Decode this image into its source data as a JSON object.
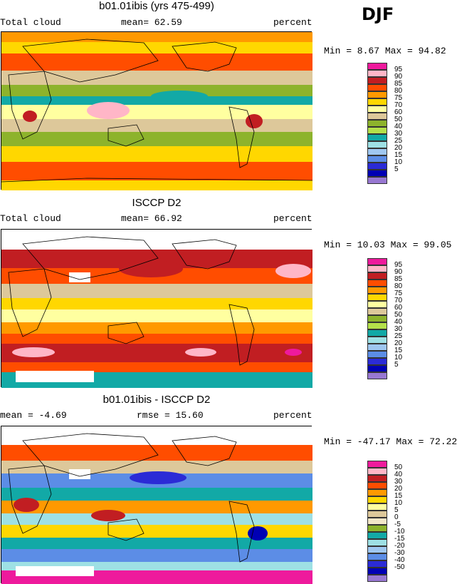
{
  "season": "DJF",
  "colors": {
    "palette": [
      "#ee1a9c",
      "#ffb6c7",
      "#c11e22",
      "#ff4d00",
      "#ff9900",
      "#ffd700",
      "#ffffa0",
      "#ddc89a",
      "#8db32c",
      "#b4e04a",
      "#12a9a6",
      "#9ee0e4",
      "#9fc7f0",
      "#5c8de6",
      "#2b2bd6",
      "#0000b4",
      "#9878d2"
    ],
    "land_outline": "#000000"
  },
  "panels": [
    {
      "id": "model",
      "title": "b01.01ibis (yrs 475-499)",
      "left_label": "Total cloud",
      "center_label": "mean=  62.59",
      "right_label": "percent",
      "minmax": "Min =   8.67 Max =  94.82",
      "legend_labels": [
        "95",
        "90",
        "85",
        "80",
        "75",
        "70",
        "60",
        "50",
        "40",
        "30",
        "25",
        "20",
        "15",
        "10",
        "5"
      ],
      "legend_colors": [
        "#ee1a9c",
        "#ffb6c7",
        "#c11e22",
        "#ff4d00",
        "#ff9900",
        "#ffd700",
        "#ffffa0",
        "#ddc89a",
        "#8db32c",
        "#b4e04a",
        "#12a9a6",
        "#9ee0e4",
        "#9fc7f0",
        "#5c8de6",
        "#2b2bd6",
        "#0000b4",
        "#9878d2"
      ]
    },
    {
      "id": "obs",
      "title": "ISCCP D2",
      "left_label": "Total cloud",
      "center_label": "mean=  66.92",
      "right_label": "percent",
      "minmax": "Min =  10.03 Max =  99.05",
      "legend_labels": [
        "95",
        "90",
        "85",
        "80",
        "75",
        "70",
        "60",
        "50",
        "40",
        "30",
        "25",
        "20",
        "15",
        "10",
        "5"
      ],
      "legend_colors": [
        "#ee1a9c",
        "#ffb6c7",
        "#c11e22",
        "#ff4d00",
        "#ff9900",
        "#ffd700",
        "#ffffa0",
        "#ddc89a",
        "#8db32c",
        "#b4e04a",
        "#12a9a6",
        "#9ee0e4",
        "#9fc7f0",
        "#5c8de6",
        "#2b2bd6",
        "#0000b4",
        "#9878d2"
      ]
    },
    {
      "id": "diff",
      "title": "b01.01ibis - ISCCP D2",
      "left_label": "mean =  -4.69",
      "center_label": "rmse =  15.60",
      "right_label": "percent",
      "minmax": "Min = -47.17 Max =  72.22",
      "legend_labels": [
        "50",
        "40",
        "30",
        "20",
        "15",
        "10",
        "5",
        "0",
        "-5",
        "-10",
        "-15",
        "-20",
        "-30",
        "-40",
        "-50"
      ],
      "legend_colors": [
        "#ee1a9c",
        "#ffb6c7",
        "#c11e22",
        "#ff4d00",
        "#ff9900",
        "#ffd700",
        "#ffffa0",
        "#ddc89a",
        "#f2e6c8",
        "#8db32c",
        "#12a9a6",
        "#9ee0e4",
        "#9fc7f0",
        "#5c8de6",
        "#2b2bd6",
        "#0000b4",
        "#9878d2"
      ]
    }
  ]
}
